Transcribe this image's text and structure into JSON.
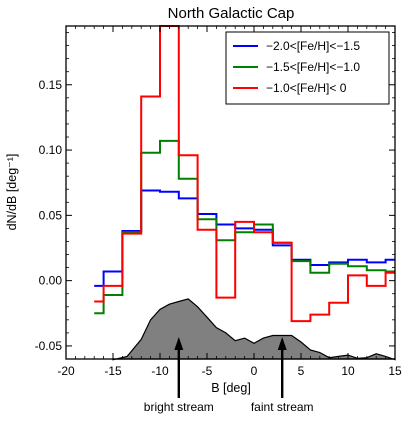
{
  "chart_data": {
    "type": "line",
    "title": "North Galactic Cap",
    "xlabel": "B [deg]",
    "ylabel": "dN/dB [deg⁻¹]",
    "xlim": [
      -20,
      15
    ],
    "ylim": [
      -0.06,
      0.195
    ],
    "xticks": [
      -20,
      -15,
      -10,
      -5,
      0,
      5,
      10,
      15
    ],
    "yticks": [
      -0.05,
      0.0,
      0.05,
      0.1,
      0.15
    ],
    "yticklabels": [
      "-0.05",
      "0.00",
      "0.05",
      "0.10",
      "0.15"
    ],
    "step_style": "steps-mid",
    "x": [
      -17,
      -15,
      -13,
      -11,
      -9,
      -7,
      -5,
      -3,
      -1,
      1,
      3,
      5,
      7,
      9,
      11,
      13,
      15
    ],
    "series": [
      {
        "name": "−2.0<[Fe/H]<−1.5",
        "color": "#0000ff",
        "values": [
          -0.004,
          0.007,
          0.038,
          0.069,
          0.068,
          0.063,
          0.051,
          0.043,
          0.04,
          0.039,
          0.027,
          0.016,
          0.012,
          0.014,
          0.016,
          0.014,
          0.016
        ]
      },
      {
        "name": "−1.5<[Fe/H]<−1.0",
        "color": "#008000",
        "values": [
          -0.025,
          -0.011,
          0.037,
          0.098,
          0.107,
          0.078,
          0.047,
          0.031,
          0.037,
          0.043,
          0.029,
          0.015,
          0.006,
          0.013,
          0.011,
          0.008,
          0.007
        ]
      },
      {
        "name": "−1.0<[Fe/H]<  0",
        "color": "#ff0000",
        "values": [
          -0.016,
          -0.004,
          0.036,
          0.141,
          0.196,
          0.096,
          0.039,
          -0.013,
          0.045,
          0.037,
          0.029,
          -0.031,
          -0.026,
          -0.017,
          0.004,
          -0.004,
          0.006
        ]
      }
    ],
    "histogram": {
      "color": "#808080",
      "x": [
        -15,
        -13.5,
        -12,
        -11,
        -10,
        -9,
        -8,
        -7,
        -6,
        -5,
        -4,
        -3,
        -2,
        -1,
        0,
        1,
        2,
        3,
        4,
        5,
        6,
        7,
        8,
        9,
        10,
        11,
        12,
        13,
        14,
        15
      ],
      "values": [
        -0.0605,
        -0.058,
        -0.045,
        -0.03,
        -0.022,
        -0.018,
        -0.016,
        -0.014,
        -0.02,
        -0.028,
        -0.036,
        -0.04,
        -0.046,
        -0.044,
        -0.048,
        -0.044,
        -0.042,
        -0.042,
        -0.042,
        -0.047,
        -0.053,
        -0.055,
        -0.059,
        -0.058,
        -0.057,
        -0.0595,
        -0.059,
        -0.056,
        -0.058,
        -0.0605
      ]
    },
    "legend": "top-right",
    "annotations": [
      {
        "text": "bright stream",
        "x": -8
      },
      {
        "text": "faint stream",
        "x": 3
      }
    ]
  }
}
